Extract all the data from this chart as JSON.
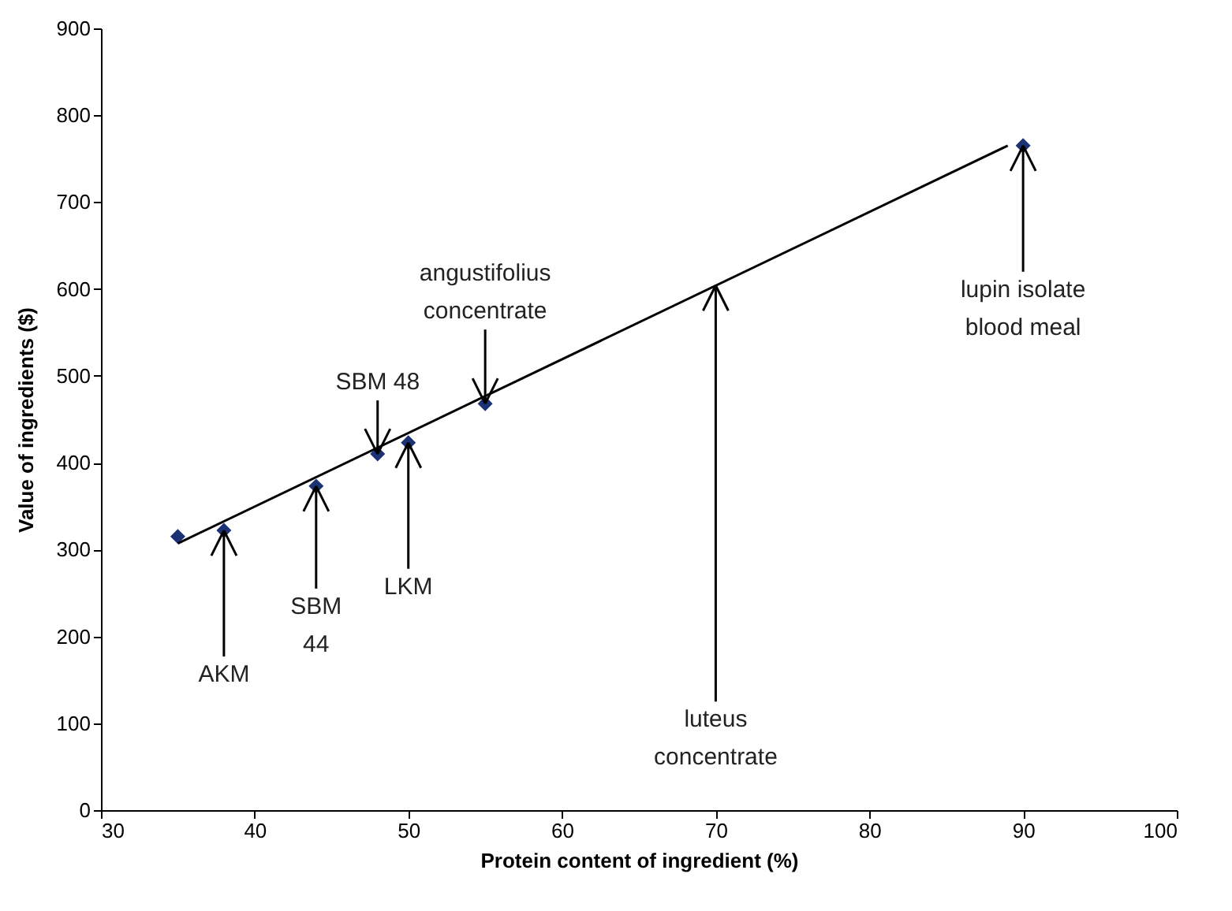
{
  "chart_data": {
    "type": "scatter",
    "xlabel": "Protein content of ingredient (%)",
    "ylabel": "Value of ingredients ($)",
    "xlim": [
      30,
      100
    ],
    "xticks": [
      30,
      40,
      50,
      60,
      70,
      80,
      90,
      100
    ],
    "ylim": [
      0,
      900
    ],
    "yticks": [
      0,
      100,
      200,
      300,
      400,
      500,
      600,
      700,
      800,
      900
    ],
    "grid": false,
    "series": [
      {
        "color": "#1b3275",
        "marker": "diamond",
        "x": [
          35,
          38,
          44,
          48,
          50,
          55,
          90
        ],
        "values": [
          315,
          322,
          373,
          410,
          423,
          468,
          765
        ]
      },
      {
        "type": "line",
        "color": "#000000",
        "x": [
          35,
          89
        ],
        "values": [
          307,
          765
        ]
      }
    ],
    "annotations": [
      {
        "text": "AKM",
        "x": 38,
        "y": 322
      },
      {
        "text": "SBM\n44",
        "x": 44,
        "y": 373
      },
      {
        "text": "SBM 48",
        "x": 48,
        "y": 410
      },
      {
        "text": "LKM",
        "x": 50,
        "y": 423
      },
      {
        "text": "angustifolius\nconcentrate",
        "x": 55,
        "y": 468
      },
      {
        "text": "luteus\nconcentrate",
        "x": 70,
        "y": 604
      },
      {
        "text": "lupin isolate\nblood meal",
        "x": 90,
        "y": 765
      }
    ]
  }
}
